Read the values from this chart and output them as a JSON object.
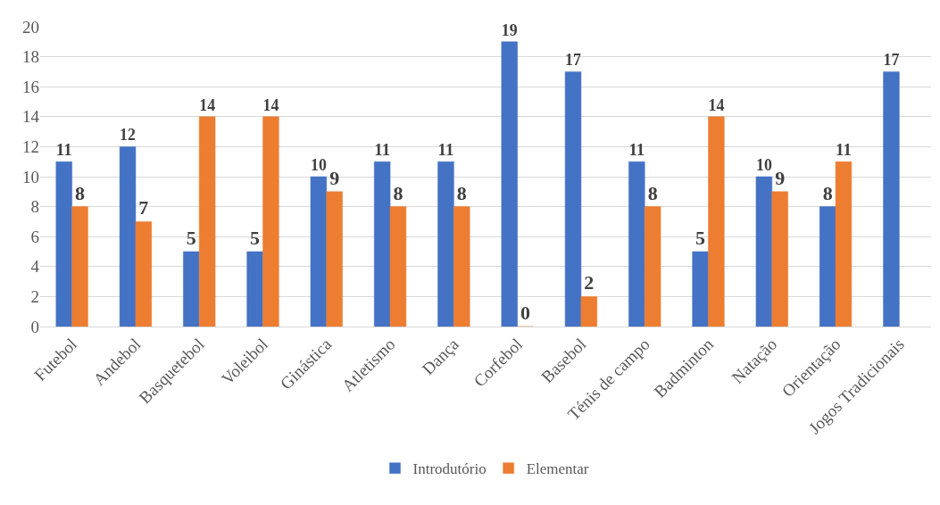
{
  "chart_data": {
    "type": "bar",
    "categories": [
      "Futebol",
      "Andebol",
      "Basquetebol",
      "Voleibol",
      "Ginástica",
      "Atletismo",
      "Dança",
      "Corfebol",
      "Basebol",
      "Ténis de campo",
      "Badminton",
      "Natação",
      "Orientação",
      "Jogos Tradicionais"
    ],
    "series": [
      {
        "name": "Introdutório",
        "color": "#4472c4",
        "values": [
          11,
          12,
          5,
          5,
          10,
          11,
          11,
          19,
          17,
          11,
          5,
          10,
          8,
          17
        ]
      },
      {
        "name": "Elementar",
        "color": "#ed7d31",
        "values": [
          8,
          7,
          14,
          14,
          9,
          8,
          8,
          0,
          2,
          8,
          14,
          9,
          11,
          null
        ]
      }
    ],
    "ylim": [
      0,
      20
    ],
    "yticks": [
      0,
      2,
      4,
      6,
      8,
      10,
      12,
      14,
      16,
      18,
      20
    ],
    "grid": "y",
    "legend": "bottom",
    "data_labels": true
  }
}
